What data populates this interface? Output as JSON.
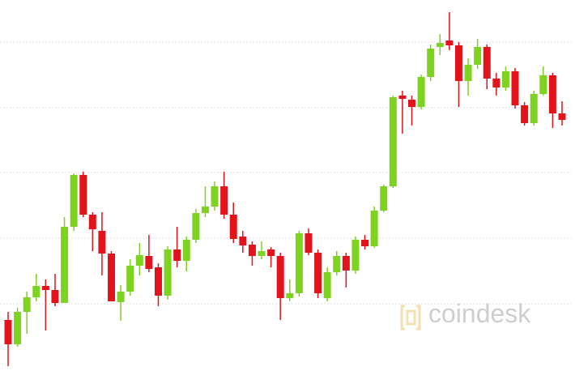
{
  "chart_data": {
    "type": "candlestick",
    "watermark": "coindesk",
    "open": [
      63,
      33,
      73,
      91,
      105,
      100,
      84,
      178,
      242,
      193,
      173,
      145,
      85,
      98,
      130,
      142,
      128,
      93,
      150,
      136,
      162,
      195,
      203,
      228,
      193,
      166,
      156,
      142,
      150,
      142,
      90,
      96,
      170,
      146,
      90,
      122,
      142,
      124,
      162,
      154,
      198,
      228,
      340,
      335,
      326,
      363,
      400,
      408,
      402,
      358,
      378,
      400,
      361,
      350,
      370,
      328,
      306,
      342,
      365,
      318
    ],
    "high": [
      73,
      78,
      98,
      120,
      113,
      120,
      190,
      244,
      246,
      196,
      196,
      148,
      106,
      138,
      158,
      168,
      133,
      154,
      178,
      166,
      200,
      228,
      234,
      246,
      208,
      173,
      160,
      160,
      153,
      146,
      113,
      173,
      176,
      150,
      128,
      148,
      146,
      166,
      168,
      203,
      230,
      340,
      346,
      340,
      366,
      403,
      416,
      443,
      406,
      386,
      410,
      403,
      368,
      376,
      374,
      332,
      346,
      376,
      368,
      333
    ],
    "low": [
      6,
      30,
      46,
      86,
      50,
      80,
      84,
      173,
      190,
      148,
      118,
      86,
      62,
      93,
      118,
      122,
      80,
      88,
      128,
      123,
      158,
      190,
      198,
      188,
      158,
      146,
      130,
      138,
      128,
      63,
      86,
      92,
      143,
      90,
      86,
      118,
      103,
      120,
      150,
      152,
      196,
      226,
      293,
      303,
      323,
      358,
      390,
      396,
      326,
      340,
      373,
      348,
      340,
      346,
      324,
      303,
      303,
      340,
      300,
      303
    ],
    "close": [
      33,
      73,
      91,
      105,
      100,
      84,
      178,
      242,
      193,
      175,
      145,
      86,
      98,
      130,
      143,
      126,
      93,
      150,
      136,
      162,
      195,
      203,
      228,
      193,
      163,
      155,
      142,
      148,
      142,
      90,
      96,
      170,
      146,
      96,
      122,
      142,
      124,
      162,
      154,
      198,
      228,
      338,
      336,
      326,
      363,
      398,
      405,
      402,
      358,
      378,
      400,
      361,
      350,
      370,
      328,
      306,
      342,
      365,
      318,
      310
    ],
    "up_color": "#7ed321",
    "down_color": "#e3131b",
    "ylim": [
      0,
      458
    ],
    "yticks": [
      83,
      164,
      245,
      325,
      406
    ],
    "grid": true
  }
}
